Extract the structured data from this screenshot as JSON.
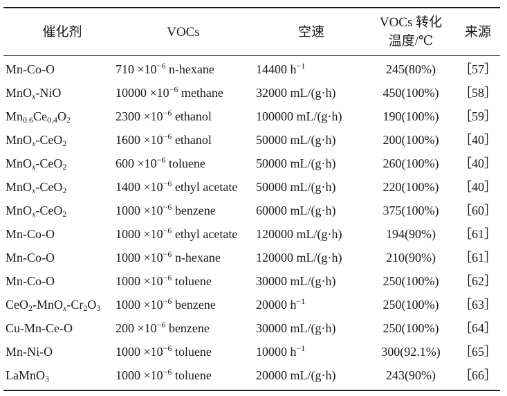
{
  "headers": {
    "catalyst": "催化剂",
    "voc": "VOCs",
    "space_velocity": "空速",
    "conversion_line1": "VOCs 转化",
    "conversion_line2": "温度/℃",
    "source": "来源"
  },
  "rows": [
    {
      "catalyst": "Mn-Co-O",
      "conc": "710",
      "voc": "n-hexane",
      "velocity": "14400 h",
      "velocity_unit": "",
      "velocity_sup": "−1",
      "temp": "245(80%)",
      "ref": "［57］"
    },
    {
      "catalyst": "MnOx-NiO",
      "conc": "10000",
      "voc": "methane",
      "velocity": "32000",
      "velocity_unit": "mL/(g·h)",
      "velocity_sup": "",
      "temp": "450(100%)",
      "ref": "［58］"
    },
    {
      "catalyst": "Mn0.6Ce0.4O2",
      "conc": "2300",
      "voc": "ethanol",
      "velocity": "100000",
      "velocity_unit": "mL/(g·h)",
      "velocity_sup": "",
      "temp": "190(100%)",
      "ref": "［59］"
    },
    {
      "catalyst": "MnOx-CeO2",
      "conc": "1600",
      "voc": "ethanol",
      "velocity": "50000",
      "velocity_unit": "mL/(g·h)",
      "velocity_sup": "",
      "temp": "200(100%)",
      "ref": "［40］"
    },
    {
      "catalyst": "MnOx-CeO2",
      "conc": "600",
      "voc": "toluene",
      "velocity": "50000",
      "velocity_unit": "mL/(g·h)",
      "velocity_sup": "",
      "temp": "260(100%)",
      "ref": "［40］"
    },
    {
      "catalyst": "MnOx-CeO2",
      "conc": "1400",
      "voc": "ethyl acetate",
      "velocity": "50000",
      "velocity_unit": "mL/(g·h)",
      "velocity_sup": "",
      "temp": "220(100%)",
      "ref": "［40］"
    },
    {
      "catalyst": "MnOx-CeO2",
      "conc": "1000",
      "voc": "benzene",
      "velocity": "60000",
      "velocity_unit": "mL/(g·h)",
      "velocity_sup": "",
      "temp": "375(100%)",
      "ref": "［60］"
    },
    {
      "catalyst": "Mn-Co-O",
      "conc": "1000",
      "voc": "ethyl acetate",
      "velocity": "120000",
      "velocity_unit": "mL/(g·h)",
      "velocity_sup": "",
      "temp": "194(90%)",
      "ref": "［61］"
    },
    {
      "catalyst": "Mn-Co-O",
      "conc": "1000",
      "voc": "n-hexane",
      "velocity": "120000",
      "velocity_unit": "mL/(g·h)",
      "velocity_sup": "",
      "temp": "210(90%)",
      "ref": "［61］"
    },
    {
      "catalyst": "Mn-Co-O",
      "conc": "1000",
      "voc": "toluene",
      "velocity": "30000",
      "velocity_unit": "mL/(g·h)",
      "velocity_sup": "",
      "temp": "250(100%)",
      "ref": "［62］"
    },
    {
      "catalyst": "CeO2-MnOx-Cr2O3",
      "conc": "1000",
      "voc": "benzene",
      "velocity": "20000 h",
      "velocity_unit": "",
      "velocity_sup": "−1",
      "temp": "250(100%)",
      "ref": "［63］"
    },
    {
      "catalyst": "Cu-Mn-Ce-O",
      "conc": "200",
      "voc": "benzene",
      "velocity": "30000",
      "velocity_unit": "mL/(g·h)",
      "velocity_sup": "",
      "temp": "250(100%)",
      "ref": "［64］"
    },
    {
      "catalyst": "Mn-Ni-O",
      "conc": "1000",
      "voc": "toluene",
      "velocity": "10000 h",
      "velocity_unit": "",
      "velocity_sup": "−1",
      "temp": "300(92.1%)",
      "ref": "［65］"
    },
    {
      "catalyst": "LaMnO3",
      "conc": "1000",
      "voc": "toluene",
      "velocity": "20000",
      "velocity_unit": "mL/(g·h)",
      "velocity_sup": "",
      "temp": "243(90%)",
      "ref": "［66］"
    }
  ],
  "unit": {
    "times": "×10",
    "exp": "−6"
  }
}
